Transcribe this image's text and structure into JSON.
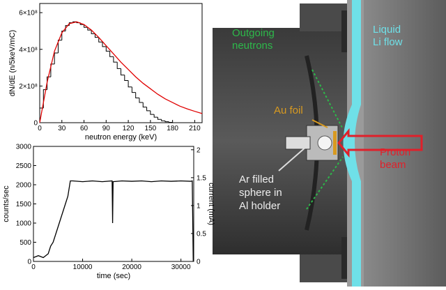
{
  "chart_data": [
    {
      "type": "histogram",
      "ylabel": "dN/dE (n/5keV/mC)",
      "xlabel": "neutron energy (keV)",
      "xlim": [
        0,
        220
      ],
      "xticks": [
        0,
        30,
        60,
        90,
        120,
        150,
        180,
        210
      ],
      "ylim": [
        0,
        650000000
      ],
      "yticks": [
        0,
        {
          "value": 200000000,
          "label": "2×10⁸"
        },
        {
          "value": 400000000,
          "label": "4×10⁸"
        },
        {
          "value": 600000000,
          "label": "6×10⁸"
        }
      ],
      "color": "#000000",
      "bins": [
        0,
        5,
        10,
        15,
        20,
        25,
        30,
        35,
        40,
        45,
        50,
        55,
        60,
        65,
        70,
        75,
        80,
        85,
        90,
        95,
        100,
        105,
        110,
        115,
        120,
        125,
        130,
        135,
        140,
        145,
        150,
        155,
        160,
        165,
        170,
        175,
        180
      ],
      "values": [
        80000000,
        180000000,
        250000000,
        320000000,
        380000000,
        450000000,
        500000000,
        530000000,
        545000000,
        550000000,
        545000000,
        535000000,
        520000000,
        505000000,
        485000000,
        465000000,
        440000000,
        415000000,
        390000000,
        360000000,
        330000000,
        295000000,
        260000000,
        230000000,
        195000000,
        165000000,
        135000000,
        110000000,
        85000000,
        65000000,
        45000000,
        30000000,
        18000000,
        10000000,
        5000000,
        2000000
      ],
      "fit": {
        "color": "#e00000",
        "x": [
          0,
          10,
          20,
          30,
          40,
          50,
          60,
          70,
          80,
          90,
          100,
          110,
          120,
          130,
          140,
          150,
          160,
          170,
          180,
          190,
          200,
          210,
          220
        ],
        "values": [
          0,
          220000000,
          390000000,
          490000000,
          540000000,
          550000000,
          535000000,
          505000000,
          465000000,
          420000000,
          375000000,
          330000000,
          290000000,
          250000000,
          215000000,
          185000000,
          155000000,
          130000000,
          110000000,
          90000000,
          75000000,
          62000000,
          50000000
        ]
      }
    },
    {
      "type": "line",
      "ylabel": "counts/sec",
      "xlabel": "time (sec)",
      "y2label": "current (mA)",
      "xlim": [
        0,
        32600
      ],
      "xticks": [
        0,
        10000,
        20000,
        30000
      ],
      "ylim": [
        0,
        3000
      ],
      "yticks": [
        0,
        500,
        1000,
        1500,
        2000,
        2500,
        3000
      ],
      "y2lim": [
        0,
        2.06
      ],
      "y2ticks": [
        0,
        0.5,
        1,
        1.5,
        2
      ],
      "x": [
        0,
        1000,
        2000,
        3000,
        3500,
        4000,
        4500,
        5000,
        5500,
        6000,
        6500,
        7000,
        7500,
        8000,
        10000,
        12000,
        14000,
        16000,
        16100,
        16200,
        18000,
        20000,
        22000,
        24000,
        26000,
        28000,
        30000,
        32000,
        32300,
        32500
      ],
      "series": [
        {
          "color": "#000000",
          "values": [
            100,
            150,
            100,
            200,
            400,
            500,
            700,
            900,
            1100,
            1300,
            1500,
            1700,
            2100,
            2100,
            2080,
            2100,
            2080,
            2100,
            1000,
            2080,
            2100,
            2090,
            2100,
            2080,
            2100,
            2090,
            2100,
            2090,
            2100,
            0
          ]
        }
      ]
    }
  ],
  "diagram": {
    "outgoing_neutrons": [
      "Outgoing",
      "neutrons"
    ],
    "liquid_li": [
      "Liquid",
      "Li flow"
    ],
    "au_foil": "Au foil",
    "proton_beam": [
      "Proton",
      "beam"
    ],
    "ar_sphere": [
      "Ar filled",
      "sphere in",
      "Al holder"
    ]
  }
}
